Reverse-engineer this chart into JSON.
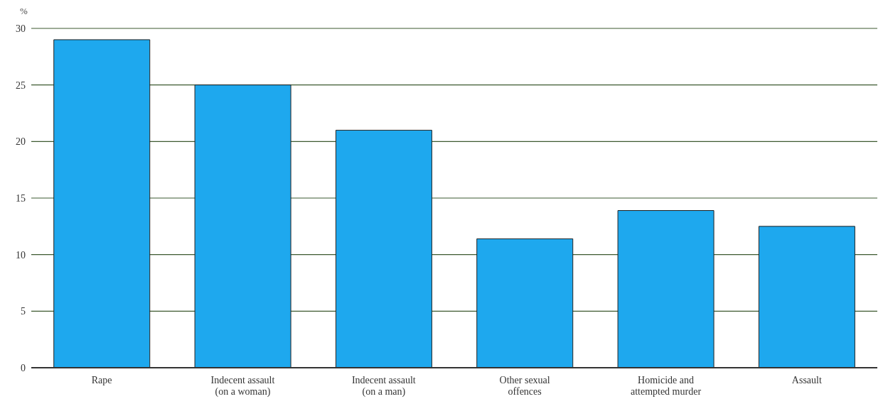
{
  "chart_data": {
    "type": "bar",
    "ylabel": "%",
    "categories": [
      "Rape",
      "Indecent assault\n(on a woman)",
      "Indecent assault\n(on a man)",
      "Other sexual\noffences",
      "Homicide and\nattempted murder",
      "Assault"
    ],
    "values": [
      29,
      25,
      21,
      11.4,
      13.9,
      12.5
    ],
    "color": "#1ea8ee",
    "ylim": [
      0,
      30
    ],
    "yticks": [
      0,
      5,
      10,
      15,
      20,
      25,
      30
    ],
    "grid": "y"
  }
}
